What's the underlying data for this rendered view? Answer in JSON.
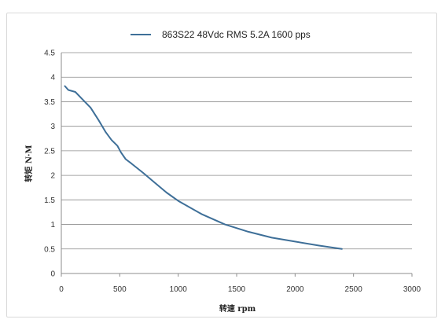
{
  "chart_data": {
    "type": "line",
    "xlabel": "转速 rpm",
    "ylabel": "转矩 N·M",
    "xlim": [
      0,
      3000
    ],
    "ylim": [
      0,
      4.5
    ],
    "x_ticks": [
      0,
      500,
      1000,
      1500,
      2000,
      2500,
      3000
    ],
    "y_ticks": [
      0,
      0.5,
      1,
      1.5,
      2,
      2.5,
      3,
      3.5,
      4,
      4.5
    ],
    "x_tick_labels": [
      "0",
      "500",
      "1000",
      "1500",
      "2000",
      "2500",
      "3000"
    ],
    "y_tick_labels": [
      "0",
      "0.5",
      "1",
      "1.5",
      "2",
      "2.5",
      "3",
      "3.5",
      "4",
      "4.5"
    ],
    "grid": "horizontal",
    "legend_position": "top",
    "series": [
      {
        "name": "863S22 48Vdc RMS 5.2A 1600 pps",
        "color": "#3e6f98",
        "x": [
          30,
          60,
          120,
          180,
          250,
          320,
          380,
          430,
          480,
          510,
          550,
          600,
          700,
          800,
          900,
          1000,
          1200,
          1400,
          1600,
          1800,
          2000,
          2200,
          2400
        ],
        "y": [
          3.82,
          3.74,
          3.7,
          3.55,
          3.38,
          3.12,
          2.88,
          2.72,
          2.6,
          2.47,
          2.33,
          2.24,
          2.05,
          1.85,
          1.65,
          1.48,
          1.21,
          1.0,
          0.85,
          0.73,
          0.65,
          0.57,
          0.5
        ]
      }
    ]
  }
}
